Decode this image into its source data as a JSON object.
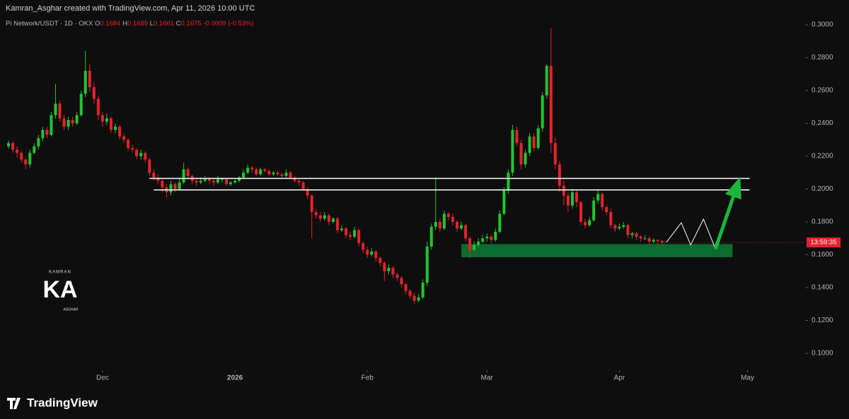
{
  "header": {
    "credit": "Kamran_Asghar created with TradingView.com, Apr 11, 2026 10:00 UTC",
    "symbol": "Pi Network/USDT · 1D · OKX",
    "o_label": "O",
    "o": 0.1684,
    "h_label": "H",
    "h": 0.1689,
    "l_label": "L",
    "l": 0.1661,
    "c_label": "C",
    "c": 0.1675,
    "change": -0.0009,
    "change_pct": "(-0.53%)"
  },
  "watermark": {
    "top": "KAMRAN",
    "mark": "KA",
    "bottom": "ASGHAR"
  },
  "brand": "TradingView",
  "chart_data": {
    "type": "candlestick",
    "up_color": "#22c42f",
    "down_color": "#e5222c",
    "grid": false,
    "xlim": [
      -2,
      186
    ],
    "ylim": [
      0.0914,
      0.3151
    ],
    "xticks": [
      {
        "value": 22,
        "label": "Dec"
      },
      {
        "value": 53,
        "label": "2026"
      },
      {
        "value": 84,
        "label": "Feb"
      },
      {
        "value": 112,
        "label": "Mar"
      },
      {
        "value": 143,
        "label": "Apr"
      },
      {
        "value": 173,
        "label": "May"
      }
    ],
    "yticks": [
      {
        "value": 0.1,
        "label": "0.1000"
      },
      {
        "value": 0.12,
        "label": "0.1200"
      },
      {
        "value": 0.14,
        "label": "0.1400"
      },
      {
        "value": 0.16,
        "label": "0.1600"
      },
      {
        "value": 0.18,
        "label": "0.1800"
      },
      {
        "value": 0.2,
        "label": "0.2000"
      },
      {
        "value": 0.22,
        "label": "0.2200"
      },
      {
        "value": 0.24,
        "label": "0.2400"
      },
      {
        "value": 0.26,
        "label": "0.2600"
      },
      {
        "value": 0.28,
        "label": "0.2800"
      },
      {
        "value": 0.3,
        "label": "0.3000"
      }
    ],
    "countdown": "13:59:35",
    "x": [
      0,
      1,
      2,
      3,
      4,
      5,
      6,
      7,
      8,
      9,
      10,
      11,
      12,
      13,
      14,
      15,
      16,
      17,
      18,
      19,
      20,
      21,
      22,
      23,
      24,
      25,
      26,
      27,
      28,
      29,
      30,
      31,
      32,
      33,
      34,
      35,
      36,
      37,
      38,
      39,
      40,
      41,
      42,
      43,
      44,
      45,
      46,
      47,
      48,
      49,
      50,
      51,
      52,
      53,
      54,
      55,
      56,
      57,
      58,
      59,
      60,
      61,
      62,
      63,
      64,
      65,
      66,
      67,
      68,
      69,
      70,
      71,
      72,
      73,
      74,
      75,
      76,
      77,
      78,
      79,
      80,
      81,
      82,
      83,
      84,
      85,
      86,
      87,
      88,
      89,
      90,
      91,
      92,
      93,
      94,
      95,
      96,
      97,
      98,
      99,
      100,
      101,
      102,
      103,
      104,
      105,
      106,
      107,
      108,
      109,
      110,
      111,
      112,
      113,
      114,
      115,
      116,
      117,
      118,
      119,
      120,
      121,
      122,
      123,
      124,
      125,
      126,
      127,
      128,
      129,
      130,
      131,
      132,
      133,
      134,
      135,
      136,
      137,
      138,
      139,
      140,
      141,
      142,
      143,
      144,
      145,
      146,
      147,
      148,
      149,
      150,
      151,
      152,
      153
    ],
    "ohlc": [
      [
        0.226,
        0.2295,
        0.2245,
        0.228
      ],
      [
        0.228,
        0.229,
        0.222,
        0.224
      ],
      [
        0.224,
        0.226,
        0.219,
        0.222
      ],
      [
        0.222,
        0.223,
        0.216,
        0.218
      ],
      [
        0.218,
        0.219,
        0.212,
        0.215
      ],
      [
        0.215,
        0.224,
        0.213,
        0.222
      ],
      [
        0.222,
        0.228,
        0.221,
        0.226
      ],
      [
        0.226,
        0.233,
        0.224,
        0.231
      ],
      [
        0.231,
        0.238,
        0.229,
        0.236
      ],
      [
        0.236,
        0.238,
        0.231,
        0.233
      ],
      [
        0.233,
        0.247,
        0.232,
        0.245
      ],
      [
        0.245,
        0.264,
        0.243,
        0.252
      ],
      [
        0.252,
        0.254,
        0.241,
        0.243
      ],
      [
        0.243,
        0.245,
        0.236,
        0.238
      ],
      [
        0.238,
        0.244,
        0.236,
        0.242
      ],
      [
        0.242,
        0.244,
        0.238,
        0.24
      ],
      [
        0.24,
        0.247,
        0.239,
        0.245
      ],
      [
        0.245,
        0.26,
        0.244,
        0.258
      ],
      [
        0.258,
        0.284,
        0.256,
        0.272
      ],
      [
        0.272,
        0.276,
        0.259,
        0.262
      ],
      [
        0.262,
        0.265,
        0.252,
        0.255
      ],
      [
        0.255,
        0.257,
        0.242,
        0.245
      ],
      [
        0.245,
        0.247,
        0.238,
        0.241
      ],
      [
        0.241,
        0.246,
        0.239,
        0.243
      ],
      [
        0.243,
        0.244,
        0.234,
        0.236
      ],
      [
        0.236,
        0.24,
        0.234,
        0.238
      ],
      [
        0.238,
        0.239,
        0.23,
        0.232
      ],
      [
        0.232,
        0.234,
        0.228,
        0.23
      ],
      [
        0.23,
        0.231,
        0.223,
        0.225
      ],
      [
        0.225,
        0.227,
        0.222,
        0.224
      ],
      [
        0.224,
        0.225,
        0.218,
        0.22
      ],
      [
        0.22,
        0.224,
        0.218,
        0.222
      ],
      [
        0.222,
        0.223,
        0.216,
        0.218
      ],
      [
        0.218,
        0.219,
        0.208,
        0.21
      ],
      [
        0.21,
        0.212,
        0.205,
        0.207
      ],
      [
        0.207,
        0.209,
        0.203,
        0.205
      ],
      [
        0.205,
        0.206,
        0.198,
        0.201
      ],
      [
        0.201,
        0.203,
        0.195,
        0.198
      ],
      [
        0.198,
        0.205,
        0.196,
        0.203
      ],
      [
        0.203,
        0.204,
        0.198,
        0.2
      ],
      [
        0.2,
        0.206,
        0.199,
        0.204
      ],
      [
        0.204,
        0.216,
        0.203,
        0.212
      ],
      [
        0.212,
        0.213,
        0.206,
        0.208
      ],
      [
        0.208,
        0.209,
        0.203,
        0.205
      ],
      [
        0.205,
        0.207,
        0.202,
        0.204
      ],
      [
        0.204,
        0.207,
        0.203,
        0.205
      ],
      [
        0.205,
        0.208,
        0.204,
        0.206
      ],
      [
        0.206,
        0.207,
        0.203,
        0.205
      ],
      [
        0.205,
        0.206,
        0.202,
        0.204
      ],
      [
        0.204,
        0.208,
        0.203,
        0.206
      ],
      [
        0.206,
        0.207,
        0.204,
        0.206
      ],
      [
        0.206,
        0.207,
        0.202,
        0.203
      ],
      [
        0.203,
        0.205,
        0.202,
        0.204
      ],
      [
        0.204,
        0.206,
        0.203,
        0.205
      ],
      [
        0.205,
        0.208,
        0.204,
        0.207
      ],
      [
        0.207,
        0.212,
        0.206,
        0.21
      ],
      [
        0.21,
        0.215,
        0.209,
        0.213
      ],
      [
        0.213,
        0.214,
        0.21,
        0.212
      ],
      [
        0.212,
        0.213,
        0.208,
        0.209
      ],
      [
        0.209,
        0.213,
        0.208,
        0.212
      ],
      [
        0.212,
        0.213,
        0.21,
        0.211
      ],
      [
        0.211,
        0.212,
        0.208,
        0.209
      ],
      [
        0.209,
        0.211,
        0.208,
        0.21
      ],
      [
        0.21,
        0.211,
        0.208,
        0.209
      ],
      [
        0.209,
        0.21,
        0.207,
        0.208
      ],
      [
        0.208,
        0.212,
        0.207,
        0.21
      ],
      [
        0.21,
        0.211,
        0.206,
        0.207
      ],
      [
        0.207,
        0.208,
        0.204,
        0.205
      ],
      [
        0.205,
        0.206,
        0.202,
        0.204
      ],
      [
        0.204,
        0.205,
        0.199,
        0.2
      ],
      [
        0.2,
        0.201,
        0.194,
        0.196
      ],
      [
        0.196,
        0.197,
        0.17,
        0.186
      ],
      [
        0.186,
        0.188,
        0.182,
        0.184
      ],
      [
        0.184,
        0.186,
        0.18,
        0.182
      ],
      [
        0.182,
        0.186,
        0.181,
        0.184
      ],
      [
        0.184,
        0.185,
        0.178,
        0.18
      ],
      [
        0.18,
        0.183,
        0.179,
        0.182
      ],
      [
        0.182,
        0.183,
        0.173,
        0.175
      ],
      [
        0.175,
        0.178,
        0.174,
        0.176
      ],
      [
        0.176,
        0.177,
        0.17,
        0.172
      ],
      [
        0.172,
        0.174,
        0.169,
        0.171
      ],
      [
        0.171,
        0.177,
        0.17,
        0.175
      ],
      [
        0.175,
        0.176,
        0.165,
        0.167
      ],
      [
        0.167,
        0.168,
        0.161,
        0.163
      ],
      [
        0.163,
        0.165,
        0.158,
        0.16
      ],
      [
        0.16,
        0.164,
        0.159,
        0.162
      ],
      [
        0.162,
        0.163,
        0.156,
        0.158
      ],
      [
        0.158,
        0.159,
        0.153,
        0.155
      ],
      [
        0.155,
        0.156,
        0.144,
        0.15
      ],
      [
        0.15,
        0.154,
        0.148,
        0.152
      ],
      [
        0.152,
        0.153,
        0.146,
        0.148
      ],
      [
        0.148,
        0.149,
        0.144,
        0.146
      ],
      [
        0.146,
        0.147,
        0.14,
        0.142
      ],
      [
        0.142,
        0.143,
        0.136,
        0.138
      ],
      [
        0.138,
        0.139,
        0.133,
        0.135
      ],
      [
        0.135,
        0.137,
        0.13,
        0.132
      ],
      [
        0.132,
        0.136,
        0.131,
        0.134
      ],
      [
        0.134,
        0.145,
        0.133,
        0.143
      ],
      [
        0.143,
        0.168,
        0.141,
        0.165
      ],
      [
        0.165,
        0.179,
        0.163,
        0.177
      ],
      [
        0.177,
        0.207,
        0.175,
        0.18
      ],
      [
        0.18,
        0.182,
        0.174,
        0.176
      ],
      [
        0.176,
        0.187,
        0.175,
        0.185
      ],
      [
        0.185,
        0.186,
        0.181,
        0.183
      ],
      [
        0.183,
        0.185,
        0.178,
        0.18
      ],
      [
        0.18,
        0.181,
        0.174,
        0.176
      ],
      [
        0.176,
        0.18,
        0.175,
        0.178
      ],
      [
        0.178,
        0.179,
        0.168,
        0.17
      ],
      [
        0.17,
        0.171,
        0.158,
        0.163
      ],
      [
        0.163,
        0.168,
        0.162,
        0.166
      ],
      [
        0.166,
        0.17,
        0.165,
        0.168
      ],
      [
        0.168,
        0.172,
        0.167,
        0.17
      ],
      [
        0.17,
        0.173,
        0.168,
        0.171
      ],
      [
        0.171,
        0.172,
        0.167,
        0.169
      ],
      [
        0.169,
        0.176,
        0.168,
        0.174
      ],
      [
        0.174,
        0.187,
        0.173,
        0.185
      ],
      [
        0.185,
        0.201,
        0.184,
        0.199
      ],
      [
        0.199,
        0.212,
        0.197,
        0.21
      ],
      [
        0.21,
        0.239,
        0.208,
        0.236
      ],
      [
        0.236,
        0.238,
        0.226,
        0.228
      ],
      [
        0.228,
        0.23,
        0.212,
        0.215
      ],
      [
        0.215,
        0.224,
        0.213,
        0.222
      ],
      [
        0.222,
        0.234,
        0.22,
        0.232
      ],
      [
        0.232,
        0.234,
        0.223,
        0.225
      ],
      [
        0.225,
        0.239,
        0.224,
        0.237
      ],
      [
        0.237,
        0.259,
        0.235,
        0.257
      ],
      [
        0.257,
        0.276,
        0.255,
        0.275
      ],
      [
        0.275,
        0.298,
        0.222,
        0.228
      ],
      [
        0.228,
        0.231,
        0.212,
        0.215
      ],
      [
        0.215,
        0.217,
        0.198,
        0.202
      ],
      [
        0.202,
        0.205,
        0.19,
        0.196
      ],
      [
        0.196,
        0.198,
        0.186,
        0.19
      ],
      [
        0.19,
        0.2,
        0.188,
        0.198
      ],
      [
        0.198,
        0.199,
        0.189,
        0.192
      ],
      [
        0.192,
        0.193,
        0.178,
        0.18
      ],
      [
        0.18,
        0.182,
        0.176,
        0.178
      ],
      [
        0.178,
        0.183,
        0.177,
        0.181
      ],
      [
        0.181,
        0.195,
        0.18,
        0.193
      ],
      [
        0.193,
        0.2,
        0.191,
        0.197
      ],
      [
        0.197,
        0.198,
        0.187,
        0.189
      ],
      [
        0.189,
        0.19,
        0.184,
        0.186
      ],
      [
        0.186,
        0.188,
        0.176,
        0.178
      ],
      [
        0.178,
        0.179,
        0.174,
        0.176
      ],
      [
        0.176,
        0.179,
        0.175,
        0.177
      ],
      [
        0.177,
        0.18,
        0.176,
        0.178
      ],
      [
        0.178,
        0.179,
        0.17,
        0.172
      ],
      [
        0.172,
        0.174,
        0.17,
        0.173
      ],
      [
        0.173,
        0.174,
        0.169,
        0.171
      ],
      [
        0.171,
        0.172,
        0.168,
        0.17
      ],
      [
        0.17,
        0.172,
        0.169,
        0.17
      ],
      [
        0.17,
        0.171,
        0.166,
        0.168
      ],
      [
        0.168,
        0.17,
        0.167,
        0.169
      ],
      [
        0.169,
        0.1695,
        0.1665,
        0.1684
      ],
      [
        0.1684,
        0.1689,
        0.1661,
        0.1675
      ]
    ],
    "levels": [
      {
        "value": 0.2065,
        "from": 33,
        "to": 173.5,
        "color": "#ffffff"
      },
      {
        "value": 0.1995,
        "from": 34,
        "to": 173.5,
        "color": "#ffffff"
      }
    ],
    "zone": {
      "top": 0.1665,
      "bottom": 0.1585,
      "from": 106,
      "to": 169.5,
      "color": "#0c6b2f"
    },
    "projection": {
      "x": [
        154,
        157.5,
        159.7,
        162.7,
        165.5
      ],
      "y": [
        0.1675,
        0.1795,
        0.166,
        0.1817,
        0.1636
      ],
      "color": "#ffffff"
    },
    "arrow": {
      "x": [
        165.5,
        171.3
      ],
      "y": [
        0.1636,
        0.2075
      ],
      "color": "#19b83c"
    }
  }
}
